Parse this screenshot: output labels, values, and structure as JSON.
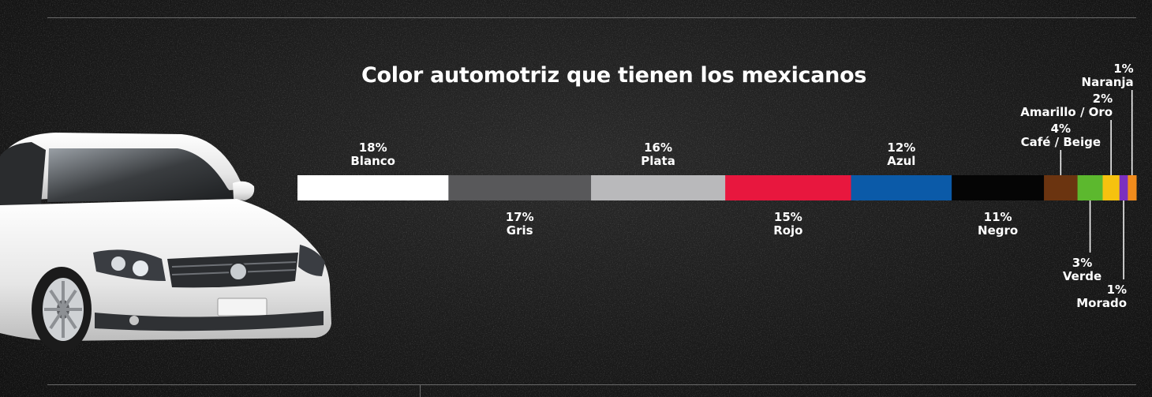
{
  "title": "Color automotriz que tienen los mexicanos",
  "chart_data": {
    "type": "bar",
    "orientation": "horizontal-stacked",
    "unit": "%",
    "categories": [
      "Blanco",
      "Gris",
      "Plata",
      "Rojo",
      "Azul",
      "Negro",
      "Café / Beige",
      "Verde",
      "Amarillo / Oro",
      "Morado",
      "Naranja"
    ],
    "values": [
      18,
      17,
      16,
      15,
      12,
      11,
      4,
      3,
      2,
      1,
      1
    ],
    "value_labels": [
      "18%",
      "17%",
      "16%",
      "15%",
      "12%",
      "11%",
      "4%",
      "3%",
      "2%",
      "1%",
      "1%"
    ],
    "colors": [
      "#ffffff",
      "#58585a",
      "#b9b9bb",
      "#e8173e",
      "#0b5aa8",
      "#050505",
      "#6b3410",
      "#5cb82e",
      "#f6c20f",
      "#7b2fbf",
      "#f28c1c"
    ],
    "label_position": [
      "top",
      "bottom",
      "top",
      "bottom",
      "top",
      "bottom",
      "top",
      "bottom",
      "top",
      "bottom",
      "top"
    ]
  }
}
